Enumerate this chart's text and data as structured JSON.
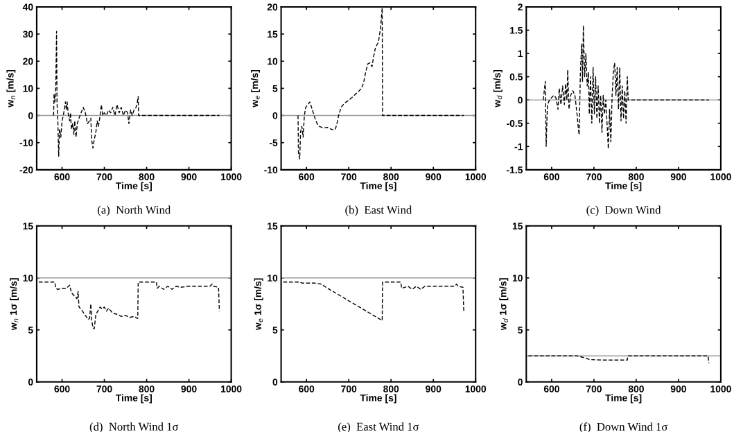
{
  "chart_data": [
    {
      "type": "line",
      "title": "(a)  North Wind",
      "xlabel": "Time [s]",
      "ylabel": "w$_{n}$ [m/s]",
      "xlim": [
        540,
        1000
      ],
      "ylim": [
        -20,
        40
      ],
      "xticks": [
        600,
        700,
        800,
        900,
        1000
      ],
      "yticks": [
        -20,
        -10,
        0,
        10,
        20,
        30,
        40
      ],
      "line_style": "dashed",
      "ref_lines": [
        {
          "axis": "y",
          "value": 0,
          "color": "#999999",
          "line_style": "solid"
        }
      ],
      "series": [
        {
          "color": "#000000",
          "x": [
            580,
            581,
            583,
            585,
            587,
            588,
            590,
            592,
            594,
            597,
            600,
            603,
            606,
            608,
            610,
            612,
            615,
            618,
            620,
            622,
            625,
            628,
            630,
            633,
            636,
            640,
            645,
            650,
            655,
            660,
            665,
            668,
            670,
            673,
            676,
            680,
            683,
            686,
            690,
            693,
            696,
            700,
            705,
            710,
            715,
            720,
            725,
            730,
            735,
            740,
            745,
            750,
            755,
            758,
            762,
            766,
            770,
            775,
            778,
            780,
            781,
            972
          ],
          "values": [
            0,
            8,
            5,
            10,
            31,
            5,
            -2,
            -15,
            -5,
            -8,
            -2,
            0,
            3,
            5,
            2,
            5,
            0,
            -2,
            1,
            -5,
            -3,
            -7,
            -2,
            -8,
            -3,
            -1,
            1,
            3,
            1,
            -3,
            -2,
            -1,
            -9,
            -12,
            -9,
            -6,
            -2,
            -4,
            0,
            4,
            0,
            1,
            0,
            2,
            1,
            3,
            0,
            4,
            1,
            3,
            0,
            2,
            1,
            -3,
            2,
            0,
            2,
            3,
            5,
            7,
            0,
            0
          ]
        }
      ]
    },
    {
      "type": "line",
      "title": "(b)  East Wind",
      "xlabel": "Time [s]",
      "ylabel": "w$_{e}$ [m/s]",
      "xlim": [
        540,
        1000
      ],
      "ylim": [
        -10,
        20
      ],
      "xticks": [
        600,
        700,
        800,
        900,
        1000
      ],
      "yticks": [
        -10,
        -5,
        0,
        5,
        10,
        15,
        20
      ],
      "line_style": "dashed",
      "ref_lines": [
        {
          "axis": "y",
          "value": 0,
          "color": "#999999",
          "line_style": "solid"
        }
      ],
      "series": [
        {
          "color": "#000000",
          "x": [
            580,
            581,
            584,
            586,
            589,
            592,
            595,
            598,
            603,
            608,
            612,
            616,
            620,
            625,
            630,
            640,
            650,
            660,
            668,
            672,
            676,
            682,
            690,
            700,
            710,
            720,
            730,
            735,
            740,
            745,
            750,
            755,
            758,
            763,
            770,
            775,
            779,
            780,
            972
          ],
          "values": [
            0,
            -7,
            -8,
            -3,
            -2,
            -4,
            0,
            1.5,
            2,
            2.5,
            1.5,
            0.5,
            -0.5,
            -1.5,
            -2,
            -2.3,
            -2.2,
            -2.6,
            -2.6,
            -1.5,
            0,
            1.5,
            2.3,
            2.8,
            3.5,
            4.2,
            5,
            6,
            8,
            9.5,
            9.7,
            9,
            10.5,
            12.5,
            13.5,
            16,
            19.8,
            0,
            0
          ]
        }
      ]
    },
    {
      "type": "line",
      "title": "(c)  Down Wind",
      "xlabel": "Time [s]",
      "ylabel": "w$_{d}$ [m/s]",
      "xlim": [
        540,
        1000
      ],
      "ylim": [
        -1.5,
        2
      ],
      "xticks": [
        600,
        700,
        800,
        900,
        1000
      ],
      "yticks": [
        -1.5,
        -1,
        -0.5,
        0,
        0.5,
        1,
        1.5,
        2
      ],
      "line_style": "dashed",
      "ref_lines": [
        {
          "axis": "y",
          "value": 0,
          "color": "#999999",
          "line_style": "solid"
        }
      ],
      "series": [
        {
          "color": "#000000",
          "x": [
            580,
            582,
            585,
            587,
            590,
            595,
            600,
            605,
            610,
            615,
            618,
            622,
            626,
            630,
            633,
            636,
            638,
            641,
            645,
            650,
            655,
            660,
            663,
            665,
            668,
            671,
            673,
            675,
            678,
            681,
            684,
            687,
            689,
            692,
            695,
            698,
            701,
            704,
            707,
            710,
            713,
            716,
            719,
            722,
            725,
            728,
            731,
            734,
            737,
            740,
            743,
            746,
            749,
            752,
            755,
            758,
            761,
            764,
            767,
            770,
            773,
            776,
            779,
            781,
            972
          ],
          "values": [
            0,
            0.15,
            0.4,
            -1.0,
            -0.1,
            0,
            0.05,
            0.1,
            0.05,
            -0.2,
            0.25,
            -0.1,
            0.3,
            -0.1,
            0.35,
            0,
            0.65,
            -0.2,
            0.1,
            0.2,
            0.1,
            -0.3,
            -0.6,
            -0.75,
            0.6,
            1.2,
            0.4,
            1.6,
            0.5,
            1.0,
            0.3,
            0.6,
            -0.3,
            0.5,
            -0.5,
            0.7,
            -0.3,
            0.5,
            -0.4,
            0.3,
            -0.5,
            0.1,
            -0.7,
            0.1,
            -0.3,
            0,
            -0.5,
            -1.05,
            -0.2,
            -0.9,
            0.1,
            0.6,
            0.8,
            0.1,
            0.7,
            -0.2,
            0.7,
            -0.45,
            0.3,
            -0.4,
            0.2,
            -0.5,
            0.5,
            0,
            0
          ]
        }
      ]
    },
    {
      "type": "line",
      "title": "(d)  North Wind 1σ",
      "xlabel": "Time [s]",
      "ylabel": "w$_{n}$ 1σ [m/s]",
      "xlim": [
        540,
        1000
      ],
      "ylim": [
        0,
        15
      ],
      "xticks": [
        600,
        700,
        800,
        900,
        1000
      ],
      "yticks": [
        0,
        5,
        10,
        15
      ],
      "line_style": "dashed",
      "ref_lines": [
        {
          "axis": "y",
          "value": 10,
          "color": "#999999",
          "line_style": "solid"
        }
      ],
      "series": [
        {
          "color": "#000000",
          "x": [
            545,
            583,
            585,
            590,
            600,
            610,
            618,
            622,
            630,
            635,
            638,
            640,
            645,
            655,
            662,
            665,
            668,
            670,
            673,
            676,
            680,
            690,
            695,
            700,
            705,
            710,
            720,
            730,
            740,
            750,
            760,
            770,
            779,
            780,
            823,
            825,
            830,
            840,
            850,
            860,
            870,
            880,
            900,
            920,
            950,
            955,
            958,
            970,
            972
          ],
          "values": [
            9.6,
            9.6,
            9.0,
            8.9,
            9.0,
            9.0,
            9.3,
            8.6,
            8.2,
            8.0,
            8.7,
            7.2,
            7.0,
            6.4,
            6.0,
            6.1,
            7.5,
            6.0,
            5.2,
            5.1,
            6.5,
            7.2,
            7.0,
            7.2,
            6.8,
            7.1,
            6.6,
            6.5,
            6.3,
            6.4,
            6.2,
            6.3,
            6.1,
            9.6,
            9.6,
            9.0,
            9.2,
            8.9,
            9.2,
            8.9,
            9.2,
            9.1,
            9.2,
            9.2,
            9.2,
            9.4,
            9.2,
            9.1,
            6.8
          ]
        }
      ]
    },
    {
      "type": "line",
      "title": "(e)  East Wind 1σ",
      "xlabel": "Time [s]",
      "ylabel": "w$_{e}$ 1σ [m/s]",
      "xlim": [
        540,
        1000
      ],
      "ylim": [
        0,
        15
      ],
      "xticks": [
        600,
        700,
        800,
        900,
        1000
      ],
      "yticks": [
        0,
        5,
        10,
        15
      ],
      "line_style": "dashed",
      "ref_lines": [
        {
          "axis": "y",
          "value": 10,
          "color": "#999999",
          "line_style": "solid"
        }
      ],
      "series": [
        {
          "color": "#000000",
          "x": [
            545,
            585,
            590,
            620,
            635,
            650,
            700,
            750,
            779,
            780,
            823,
            825,
            840,
            850,
            860,
            870,
            880,
            950,
            955,
            958,
            970,
            972
          ],
          "values": [
            9.6,
            9.6,
            9.5,
            9.5,
            9.4,
            9.0,
            7.8,
            6.6,
            5.9,
            9.6,
            9.6,
            9.0,
            9.2,
            8.9,
            9.2,
            8.9,
            9.2,
            9.2,
            9.4,
            9.2,
            9.1,
            6.8
          ]
        }
      ]
    },
    {
      "type": "line",
      "title": "(f)  Down Wind 1σ",
      "xlabel": "Time [s]",
      "ylabel": "w$_{d}$ 1σ [m/s]",
      "xlim": [
        540,
        1000
      ],
      "ylim": [
        0,
        15
      ],
      "xticks": [
        600,
        700,
        800,
        900,
        1000
      ],
      "yticks": [
        0,
        5,
        10,
        15
      ],
      "line_style": "dashed",
      "ref_lines": [
        {
          "axis": "y",
          "value": 2.5,
          "color": "#999999",
          "line_style": "solid"
        }
      ],
      "series": [
        {
          "color": "#000000",
          "x": [
            545,
            660,
            670,
            690,
            720,
            779,
            780,
            970,
            972
          ],
          "values": [
            2.5,
            2.5,
            2.4,
            2.15,
            2.1,
            2.1,
            2.5,
            2.5,
            1.8
          ]
        }
      ]
    }
  ]
}
